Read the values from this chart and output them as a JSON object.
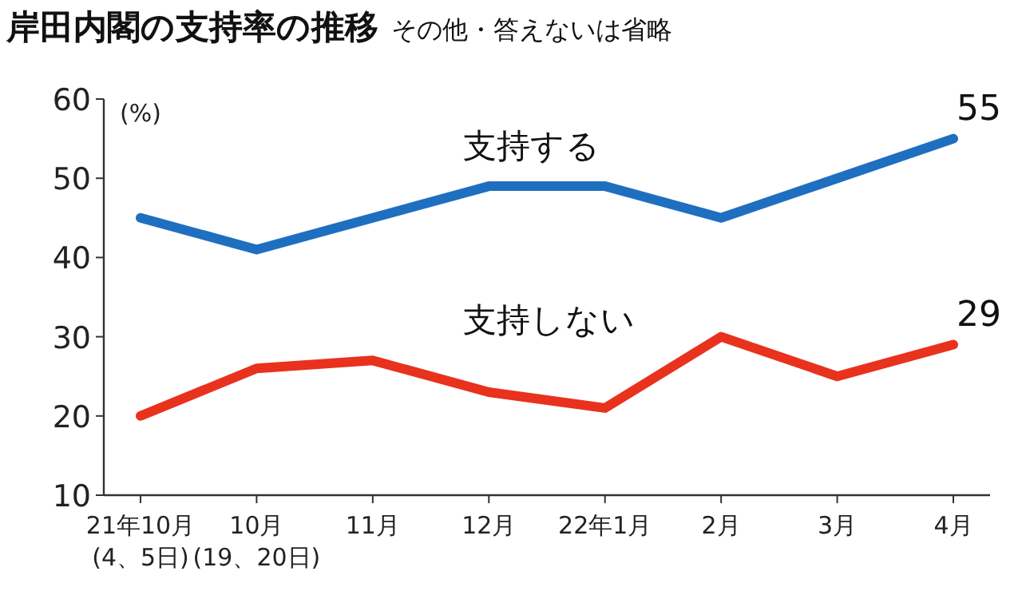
{
  "chart_data": {
    "type": "line",
    "title": "岸田内閣の支持率の推移",
    "subtitle": "その他・答えないは省略",
    "ylabel": "(%)",
    "categories": [
      "21年10月\n(4、5日)",
      "10月\n(19、20日)",
      "11月",
      "12月",
      "22年1月",
      "2月",
      "3月",
      "4月"
    ],
    "ylim": [
      10,
      60
    ],
    "yticks": [
      10,
      20,
      30,
      40,
      50,
      60
    ],
    "series": [
      {
        "name": "支持する",
        "color": "#1f6fc0",
        "values": [
          45,
          41,
          45,
          49,
          49,
          45,
          50,
          55
        ],
        "value_labels": [
          null,
          null,
          null,
          null,
          null,
          null,
          null,
          "55"
        ]
      },
      {
        "name": "支持しない",
        "color": "#e8321e",
        "values": [
          20,
          26,
          27,
          23,
          21,
          30,
          25,
          29
        ],
        "value_labels": [
          null,
          null,
          null,
          null,
          null,
          null,
          null,
          "29"
        ]
      }
    ]
  }
}
